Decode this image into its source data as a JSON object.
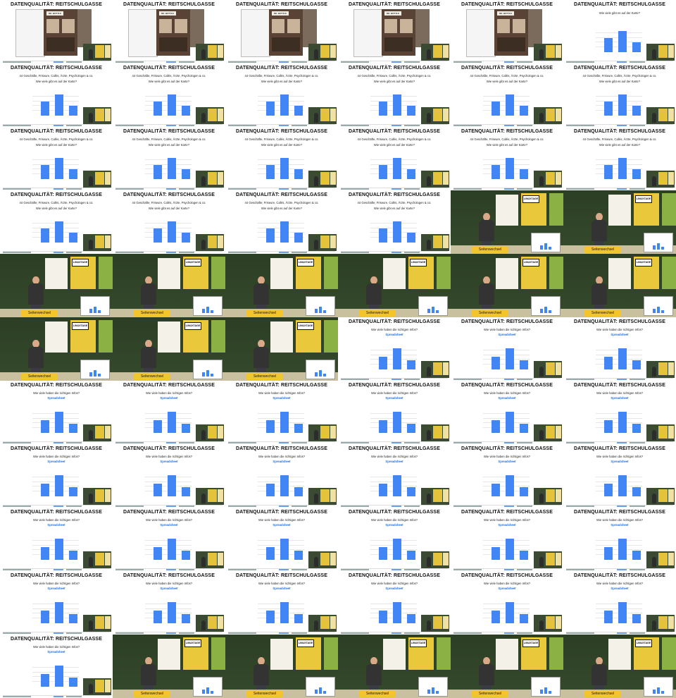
{
  "frames": {
    "screenshot": {
      "title": "DATENQUALITÄT: REITSCHULGASSE",
      "inner_header": "RE: BOTTLE"
    },
    "slide_a": {
      "title": "DATENQUALITÄT: REITSCHULGASSE",
      "line1": "44 Geschäfte, Friseure, Cafés, Ärzte, Psychologen & co.",
      "line2": "Wie viele gibt es auf der Karte?",
      "chart": {
        "type": "bar",
        "values": [
          40,
          58,
          28
        ]
      }
    },
    "slide_b": {
      "title": "DATENQUALITÄT: REITSCHULGASSE",
      "line1": "Wie viele haben die richtigen Infos?",
      "line2": "Spreadsheet",
      "chart": {
        "type": "bar",
        "values": [
          36,
          58,
          26
        ]
      }
    },
    "camera": {
      "poster_label": "LINUXTAGE",
      "lower_third": "Seitenwechsel"
    }
  },
  "grid_layout": [
    "screenshot",
    "screenshot",
    "screenshot",
    "screenshot",
    "screenshot",
    "slide_a_short",
    "slide_a",
    "slide_a",
    "slide_a",
    "slide_a",
    "slide_a",
    "slide_a",
    "slide_a",
    "slide_a",
    "slide_a",
    "slide_a",
    "slide_a",
    "slide_a",
    "slide_a",
    "slide_a",
    "slide_a",
    "slide_a",
    "camera",
    "camera",
    "camera",
    "camera",
    "camera",
    "camera",
    "camera",
    "camera",
    "camera",
    "camera",
    "camera",
    "slide_b",
    "slide_b",
    "slide_b",
    "slide_b",
    "slide_b",
    "slide_b",
    "slide_b",
    "slide_b",
    "slide_b",
    "slide_b",
    "slide_b",
    "slide_b",
    "slide_b",
    "slide_b",
    "slide_b",
    "slide_b",
    "slide_b",
    "slide_b",
    "slide_b",
    "slide_b",
    "slide_b",
    "slide_b",
    "slide_b",
    "slide_b",
    "slide_b",
    "slide_b",
    "slide_b",
    "slide_b",
    "camera",
    "camera",
    "camera",
    "camera",
    "camera"
  ]
}
